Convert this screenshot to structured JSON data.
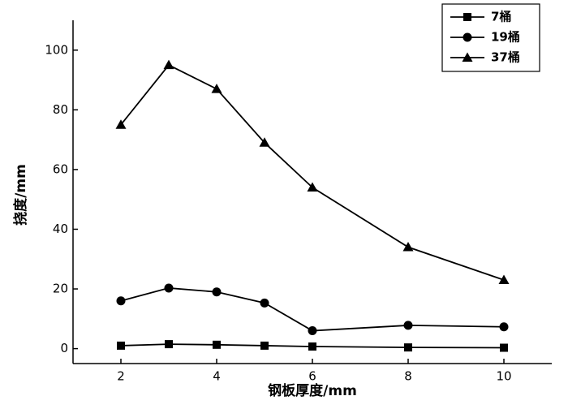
{
  "chart_data": {
    "type": "line",
    "x_label": "钢板厚度/mm",
    "y_label": "挠度/mm",
    "x": [
      2,
      3,
      4,
      5,
      6,
      8,
      10
    ],
    "series": [
      {
        "name": "7桶",
        "color": "#000000",
        "marker": "square",
        "values": [
          1,
          1.5,
          1.3,
          1,
          0.7,
          0.4,
          0.3
        ]
      },
      {
        "name": "19桶",
        "color": "#000000",
        "marker": "circle",
        "values": [
          16,
          20.3,
          19,
          15.3,
          6,
          7.8,
          7.3
        ]
      },
      {
        "name": "37桶",
        "color": "#000000",
        "marker": "triangle",
        "values": [
          75,
          95,
          87,
          69,
          54,
          34,
          23
        ]
      }
    ],
    "xlim": [
      1,
      11
    ],
    "xticks": [
      2,
      4,
      6,
      8,
      10
    ],
    "ylim": [
      -5,
      110
    ],
    "yticks": [
      0,
      20,
      40,
      60,
      80,
      100
    ],
    "legend": "top-right"
  }
}
